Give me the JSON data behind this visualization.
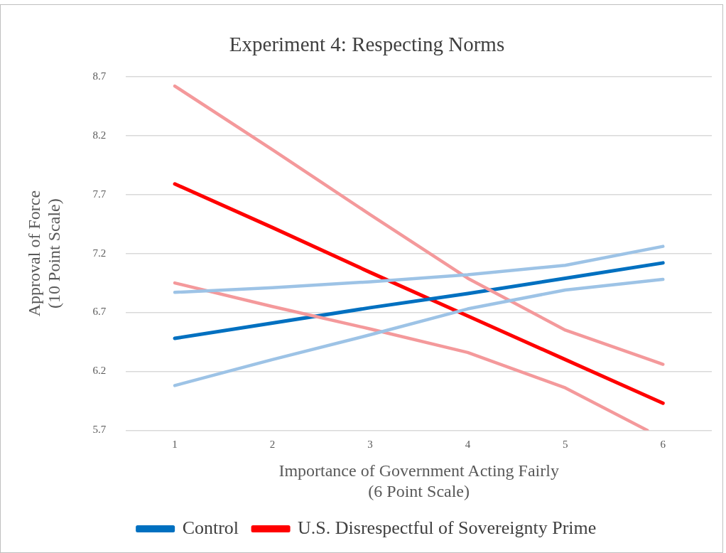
{
  "chart_data": {
    "type": "line",
    "title": "Experiment 4: Respecting Norms",
    "xlabel": [
      "Importance of Government Acting Fairly",
      "(6 Point Scale)"
    ],
    "ylabel": [
      "Approval of Force",
      "(10 Point Scale)"
    ],
    "x": [
      1,
      2,
      3,
      4,
      5,
      6
    ],
    "xlim": [
      0.5,
      6.5
    ],
    "xticks": [
      1,
      2,
      3,
      4,
      5,
      6
    ],
    "ylim": [
      5.7,
      8.7
    ],
    "yticks": [
      5.7,
      6.2,
      6.7,
      7.2,
      7.7,
      8.2,
      8.7
    ],
    "grid": "y",
    "legend": "bottom",
    "marker": "none",
    "line_style": "solid",
    "series": [
      {
        "color": "#9dc3e6",
        "values": [
          6.87,
          6.91,
          6.96,
          7.02,
          7.1,
          7.26
        ]
      },
      {
        "color": "#9dc3e6",
        "values": [
          6.08,
          6.3,
          6.51,
          6.73,
          6.89,
          6.98
        ]
      },
      {
        "color": "#f4999b",
        "values": [
          8.62,
          8.08,
          7.53,
          6.99,
          6.55,
          6.26
        ]
      },
      {
        "color": "#f4999b",
        "x": [
          1,
          2,
          3,
          4,
          5,
          5.84
        ],
        "values": [
          6.95,
          6.75,
          6.56,
          6.36,
          6.06,
          5.7
        ]
      },
      {
        "name": "Control",
        "color": "#0070c0",
        "values": [
          6.48,
          6.61,
          6.74,
          6.86,
          6.99,
          7.12
        ]
      },
      {
        "name": "U.S. Disrespectful of Sovereignty Prime",
        "color": "#ff0000",
        "values": [
          7.79,
          7.42,
          7.04,
          6.67,
          6.3,
          5.93
        ]
      }
    ]
  }
}
